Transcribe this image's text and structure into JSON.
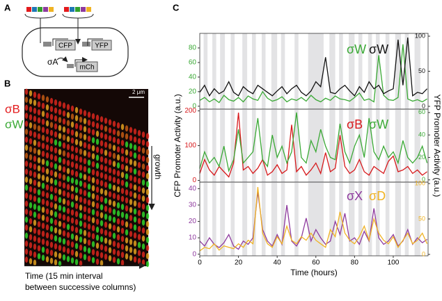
{
  "figure": {
    "panels": {
      "a": {
        "label": "A",
        "genes": [
          "CFP",
          "YFP",
          "mCh"
        ],
        "sigma": "σA"
      },
      "b": {
        "label": "B",
        "scale_bar": "2 μm",
        "legend": [
          "σB",
          "σW"
        ],
        "growth": "growth",
        "time_caption": [
          "Time (15 min interval",
          "between successive columns)"
        ]
      },
      "c": {
        "label": "C"
      }
    }
  },
  "chart_data": [
    {
      "type": "line",
      "ylabel_side": "left",
      "x": [
        0,
        2.5,
        5,
        7.5,
        10,
        12.5,
        15,
        17.5,
        20,
        22.5,
        25,
        27.5,
        30,
        32.5,
        35,
        37.5,
        40,
        42.5,
        45,
        47.5,
        50,
        52.5,
        55,
        57.5,
        60,
        62.5,
        65,
        67.5,
        70,
        72.5,
        75,
        77.5,
        80,
        82.5,
        85,
        87.5,
        90,
        92.5,
        95,
        97.5,
        100,
        102.5,
        105,
        107.5,
        110,
        112.5,
        115,
        117.5
      ],
      "xlim": [
        0,
        118
      ],
      "ylim": [
        -4,
        100
      ],
      "yticks": [
        0,
        20,
        40,
        60,
        80
      ],
      "y2lim": [
        -4,
        104
      ],
      "y2ticks": [
        0,
        50,
        100
      ],
      "bands": [
        [
          2,
          4
        ],
        [
          6.5,
          8.5
        ],
        [
          10.5,
          13
        ],
        [
          16,
          18
        ],
        [
          22,
          24.5
        ],
        [
          27,
          29
        ],
        [
          32,
          34
        ],
        [
          37,
          40
        ],
        [
          42,
          44
        ],
        [
          49,
          51
        ],
        [
          56,
          64
        ],
        [
          67,
          70
        ],
        [
          72,
          74
        ],
        [
          77,
          80
        ],
        [
          82,
          84
        ],
        [
          87,
          89
        ],
        [
          91,
          93
        ],
        [
          96,
          98
        ],
        [
          101,
          104
        ],
        [
          106,
          108
        ],
        [
          111,
          114
        ]
      ],
      "series": [
        {
          "name": "σW",
          "color": "#3aa935",
          "values": [
            8,
            12,
            6,
            10,
            5,
            15,
            9,
            7,
            12,
            6,
            14,
            10,
            8,
            20,
            11,
            7,
            9,
            13,
            6,
            10,
            8,
            12,
            7,
            15,
            9,
            6,
            11,
            8,
            14,
            10,
            9,
            7,
            12,
            18,
            8,
            10,
            6,
            70,
            15,
            9,
            8,
            12,
            85,
            10,
            7,
            9,
            6,
            10
          ]
        },
        {
          "name": "σW",
          "color": "#111111",
          "axis": "y2",
          "values": [
            20,
            30,
            15,
            25,
            18,
            22,
            35,
            20,
            15,
            28,
            22,
            18,
            30,
            25,
            20,
            15,
            22,
            28,
            18,
            25,
            30,
            20,
            15,
            22,
            35,
            28,
            70,
            20,
            18,
            25,
            30,
            22,
            15,
            28,
            20,
            35,
            25,
            30,
            18,
            22,
            25,
            95,
            30,
            98,
            15,
            20,
            18,
            25
          ]
        }
      ]
    },
    {
      "type": "line",
      "ylabel": "CFP Promoter Activity (a.u.)",
      "y2label": "YFP Promoter Activity (a.u.)",
      "x": [
        0,
        2.5,
        5,
        7.5,
        10,
        12.5,
        15,
        17.5,
        20,
        22.5,
        25,
        27.5,
        30,
        32.5,
        35,
        37.5,
        40,
        42.5,
        45,
        47.5,
        50,
        52.5,
        55,
        57.5,
        60,
        62.5,
        65,
        67.5,
        70,
        72.5,
        75,
        77.5,
        80,
        82.5,
        85,
        87.5,
        90,
        92.5,
        95,
        97.5,
        100,
        102.5,
        105,
        107.5,
        110,
        112.5,
        115,
        117.5
      ],
      "xlim": [
        0,
        118
      ],
      "ylim": [
        -5,
        205
      ],
      "yticks": [
        0,
        100,
        200
      ],
      "y2lim": [
        -2,
        63
      ],
      "y2ticks": [
        0,
        20,
        40,
        60
      ],
      "bands": [
        [
          2,
          4
        ],
        [
          6.5,
          8.5
        ],
        [
          10.5,
          13
        ],
        [
          16,
          18
        ],
        [
          22,
          24.5
        ],
        [
          27,
          29
        ],
        [
          32,
          34
        ],
        [
          37,
          40
        ],
        [
          42,
          44
        ],
        [
          49,
          51
        ],
        [
          56,
          64
        ],
        [
          67,
          70
        ],
        [
          72,
          74
        ],
        [
          77,
          80
        ],
        [
          82,
          84
        ],
        [
          87,
          89
        ],
        [
          91,
          93
        ],
        [
          96,
          98
        ],
        [
          101,
          104
        ],
        [
          106,
          108
        ],
        [
          111,
          114
        ]
      ],
      "series": [
        {
          "name": "σB",
          "color": "#d7191c",
          "values": [
            20,
            60,
            30,
            15,
            40,
            25,
            10,
            50,
            195,
            30,
            40,
            20,
            35,
            60,
            15,
            25,
            45,
            20,
            30,
            160,
            25,
            40,
            15,
            30,
            50,
            20,
            80,
            25,
            35,
            130,
            40,
            20,
            30,
            60,
            25,
            15,
            40,
            30,
            20,
            55,
            70,
            25,
            30,
            40,
            20,
            30,
            15,
            25
          ]
        },
        {
          "name": "σW",
          "color": "#3aa935",
          "axis": "y2",
          "values": [
            10,
            25,
            15,
            20,
            12,
            30,
            8,
            18,
            45,
            15,
            20,
            25,
            55,
            18,
            12,
            40,
            20,
            30,
            15,
            25,
            60,
            20,
            15,
            35,
            25,
            45,
            30,
            20,
            18,
            50,
            25,
            15,
            30,
            40,
            20,
            55,
            25,
            18,
            30,
            20,
            25,
            15,
            35,
            20,
            15,
            20,
            30,
            15
          ]
        }
      ]
    },
    {
      "type": "line",
      "xlabel": "Time (hours)",
      "x": [
        0,
        2.5,
        5,
        7.5,
        10,
        12.5,
        15,
        17.5,
        20,
        22.5,
        25,
        27.5,
        30,
        32.5,
        35,
        37.5,
        40,
        42.5,
        45,
        47.5,
        50,
        52.5,
        55,
        57.5,
        60,
        62.5,
        65,
        67.5,
        70,
        72.5,
        75,
        77.5,
        80,
        82.5,
        85,
        87.5,
        90,
        92.5,
        95,
        97.5,
        100,
        102.5,
        105,
        107.5,
        110,
        112.5,
        115,
        117.5
      ],
      "xlim": [
        0,
        118
      ],
      "xticks": [
        0,
        20,
        40,
        60,
        80,
        100
      ],
      "ylim": [
        -1,
        44
      ],
      "yticks": [
        0,
        10,
        20,
        30,
        40
      ],
      "y2lim": [
        -2,
        102
      ],
      "y2ticks": [
        0,
        50,
        100
      ],
      "bands": [
        [
          2,
          4
        ],
        [
          6.5,
          8.5
        ],
        [
          10.5,
          13
        ],
        [
          16,
          18
        ],
        [
          22,
          24.5
        ],
        [
          27,
          29
        ],
        [
          32,
          34
        ],
        [
          37,
          40
        ],
        [
          42,
          44
        ],
        [
          49,
          51
        ],
        [
          56,
          64
        ],
        [
          67,
          70
        ],
        [
          72,
          74
        ],
        [
          77,
          80
        ],
        [
          82,
          84
        ],
        [
          87,
          89
        ],
        [
          91,
          93
        ],
        [
          96,
          98
        ],
        [
          101,
          104
        ],
        [
          106,
          108
        ],
        [
          111,
          114
        ]
      ],
      "series": [
        {
          "name": "σX",
          "color": "#8e3a9e",
          "values": [
            8,
            5,
            10,
            6,
            4,
            7,
            12,
            5,
            3,
            8,
            6,
            10,
            38,
            15,
            8,
            5,
            12,
            6,
            30,
            8,
            5,
            10,
            22,
            8,
            15,
            10,
            6,
            8,
            20,
            12,
            25,
            8,
            10,
            6,
            14,
            8,
            28,
            10,
            6,
            8,
            12,
            5,
            8,
            15,
            6,
            10,
            7,
            9
          ]
        },
        {
          "name": "σD",
          "color": "#f0b323",
          "axis": "y2",
          "values": [
            5,
            10,
            8,
            15,
            6,
            12,
            10,
            8,
            15,
            10,
            20,
            15,
            95,
            30,
            15,
            10,
            25,
            15,
            40,
            20,
            15,
            25,
            20,
            30,
            20,
            15,
            10,
            35,
            25,
            60,
            30,
            20,
            15,
            25,
            40,
            20,
            50,
            30,
            20,
            15,
            25,
            10,
            20,
            30,
            15,
            20,
            30,
            15
          ]
        }
      ]
    }
  ]
}
